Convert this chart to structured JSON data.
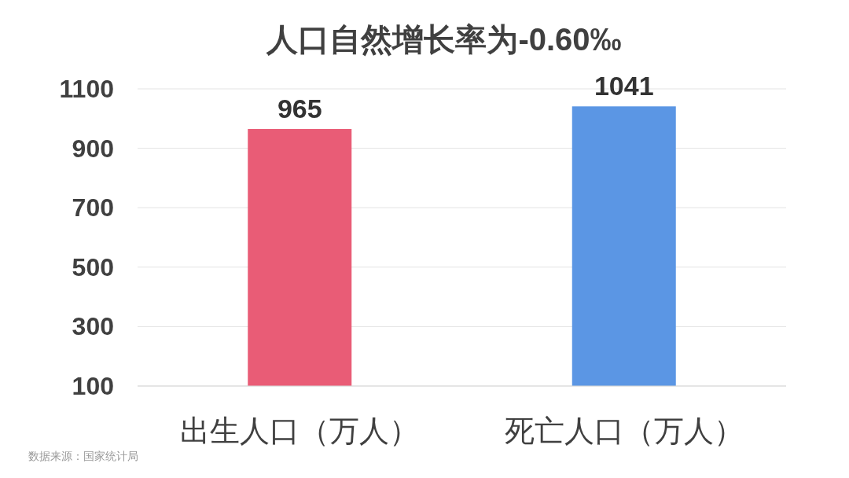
{
  "chart_data": {
    "type": "bar",
    "title": "人口自然增长率为-0.60‰",
    "categories": [
      "出生人口（万人）",
      "死亡人口（万人）"
    ],
    "values": [
      965,
      1041
    ],
    "colors": [
      "#e95c76",
      "#5b96e4"
    ],
    "ylim": [
      100,
      1100
    ],
    "yticks": [
      100,
      300,
      500,
      700,
      900,
      1100
    ],
    "grid": "y",
    "data_labels": true,
    "annotations": [
      "数据来源：国家统计局"
    ]
  }
}
